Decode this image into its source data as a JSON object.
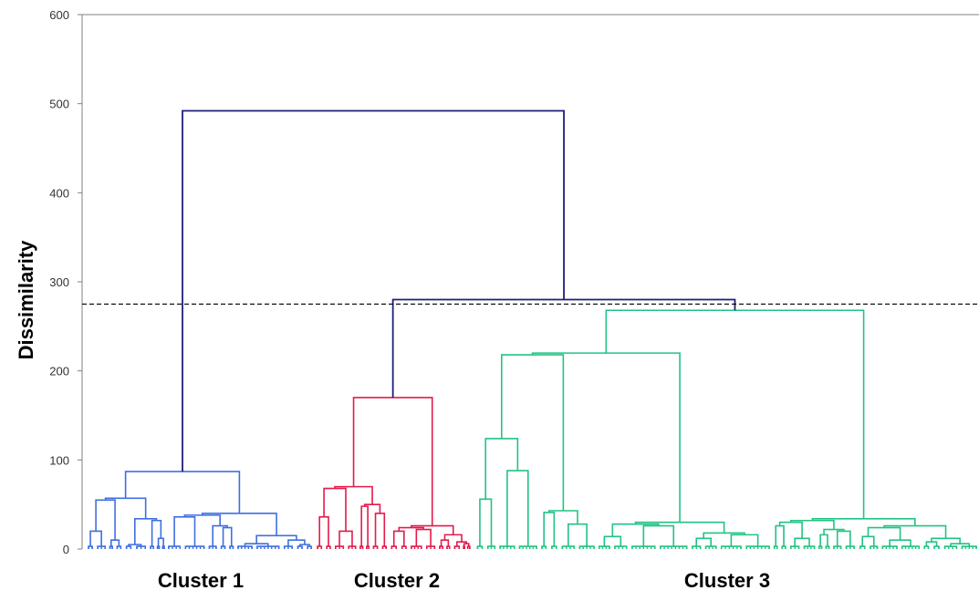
{
  "chart_data": {
    "type": "dendrogram",
    "title": "",
    "xlabel": "",
    "ylabel": "Dissimilarity",
    "ylim": [
      0,
      600
    ],
    "yticks": [
      0,
      100,
      200,
      300,
      400,
      500,
      600
    ],
    "grid": false,
    "cut_line": {
      "value": 275,
      "style": "dashed"
    },
    "colors": {
      "top_links": "#1f1f7a",
      "cluster1": "#3f6fe0",
      "cluster2": "#e31b4b",
      "cluster3": "#22c384",
      "axis": "#808080",
      "cut_line": "#000000"
    },
    "clusters": [
      {
        "name": "Cluster 1",
        "color_key": "cluster1",
        "root_height": 87,
        "subgroup_heights": [
          53,
          55
        ],
        "leaf_link_heights": [
          20,
          10,
          15,
          5,
          32,
          12,
          24,
          8,
          36,
          12,
          24,
          15,
          6,
          10,
          5
        ]
      },
      {
        "name": "Cluster 2",
        "color_key": "cluster2",
        "root_height": 170,
        "subgroup_heights": [
          63,
          68
        ],
        "leaf_link_heights": [
          36,
          20,
          15,
          48,
          40,
          12,
          18,
          20,
          22,
          16,
          10,
          8,
          6
        ]
      },
      {
        "name": "Cluster 3",
        "color_key": "cluster3",
        "root_height": 268,
        "subgroup_heights": [
          61,
          218,
          124,
          56,
          88,
          32,
          41
        ],
        "leaf_link_heights": [
          28,
          30,
          20,
          14,
          26,
          18,
          12,
          16,
          10,
          14,
          30,
          26,
          12,
          18,
          16,
          20,
          18,
          24,
          14,
          10,
          12,
          8,
          6
        ]
      }
    ],
    "merges": [
      {
        "joins": [
          "Cluster 2",
          "Cluster 3"
        ],
        "height": 280
      },
      {
        "joins": [
          "Cluster 1",
          "Cluster 2+3"
        ],
        "height": 492
      }
    ]
  }
}
